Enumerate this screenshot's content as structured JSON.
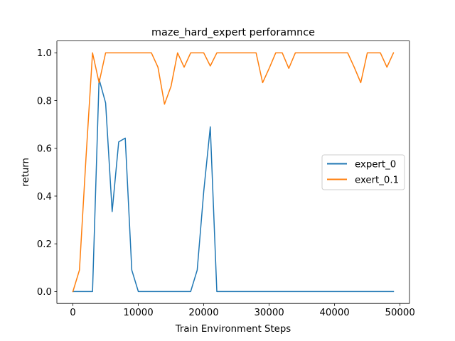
{
  "chart_data": {
    "type": "line",
    "title": "maze_hard_expert perforamnce",
    "xlabel": "Train Environment Steps",
    "ylabel": "return",
    "xlim": [
      -2450,
      51450
    ],
    "ylim": [
      -0.05,
      1.05
    ],
    "xticks": [
      0,
      10000,
      20000,
      30000,
      40000,
      50000
    ],
    "xtick_labels": [
      "0",
      "10000",
      "20000",
      "30000",
      "40000",
      "50000"
    ],
    "yticks": [
      0.0,
      0.2,
      0.4,
      0.6,
      0.8,
      1.0
    ],
    "ytick_labels": [
      "0.0",
      "0.2",
      "0.4",
      "0.6",
      "0.8",
      "1.0"
    ],
    "grid": false,
    "legend_position": "center-right",
    "series": [
      {
        "name": "expert_0",
        "color": "#1f77b4",
        "x": [
          0,
          1000,
          2000,
          3000,
          4000,
          5000,
          6000,
          7000,
          8000,
          9000,
          10000,
          11000,
          12000,
          13000,
          14000,
          15000,
          16000,
          17000,
          18000,
          19000,
          20000,
          21000,
          22000,
          23000,
          24000,
          25000,
          26000,
          27000,
          28000,
          29000,
          30000,
          31000,
          32000,
          33000,
          34000,
          35000,
          36000,
          37000,
          38000,
          39000,
          40000,
          41000,
          42000,
          43000,
          44000,
          45000,
          46000,
          47000,
          48000,
          49000
        ],
        "y": [
          0.0,
          0.0,
          0.0,
          0.0,
          0.89,
          0.79,
          0.335,
          0.627,
          0.643,
          0.09,
          0.0,
          0.0,
          0.0,
          0.0,
          0.0,
          0.0,
          0.0,
          0.0,
          0.0,
          0.09,
          0.42,
          0.69,
          0.0,
          0.0,
          0.0,
          0.0,
          0.0,
          0.0,
          0.0,
          0.0,
          0.0,
          0.0,
          0.0,
          0.0,
          0.0,
          0.0,
          0.0,
          0.0,
          0.0,
          0.0,
          0.0,
          0.0,
          0.0,
          0.0,
          0.0,
          0.0,
          0.0,
          0.0,
          0.0,
          0.0
        ]
      },
      {
        "name": "exert_0.1",
        "color": "#ff7f0e",
        "x": [
          0,
          1000,
          2000,
          3000,
          4000,
          5000,
          6000,
          7000,
          8000,
          9000,
          10000,
          11000,
          12000,
          13000,
          14000,
          15000,
          16000,
          17000,
          18000,
          19000,
          20000,
          21000,
          22000,
          23000,
          24000,
          25000,
          26000,
          27000,
          28000,
          29000,
          30000,
          31000,
          32000,
          33000,
          34000,
          35000,
          36000,
          37000,
          38000,
          39000,
          40000,
          41000,
          42000,
          43000,
          44000,
          45000,
          46000,
          47000,
          48000,
          49000
        ],
        "y": [
          0.0,
          0.09,
          0.56,
          1.0,
          0.875,
          1.0,
          1.0,
          1.0,
          1.0,
          1.0,
          1.0,
          1.0,
          1.0,
          0.94,
          0.785,
          0.86,
          1.0,
          0.94,
          1.0,
          1.0,
          1.0,
          0.945,
          1.0,
          1.0,
          1.0,
          1.0,
          1.0,
          1.0,
          1.0,
          0.875,
          0.935,
          1.0,
          1.0,
          0.935,
          1.0,
          1.0,
          1.0,
          1.0,
          1.0,
          1.0,
          1.0,
          1.0,
          1.0,
          0.94,
          0.875,
          1.0,
          1.0,
          1.0,
          0.94,
          1.0
        ]
      }
    ]
  }
}
